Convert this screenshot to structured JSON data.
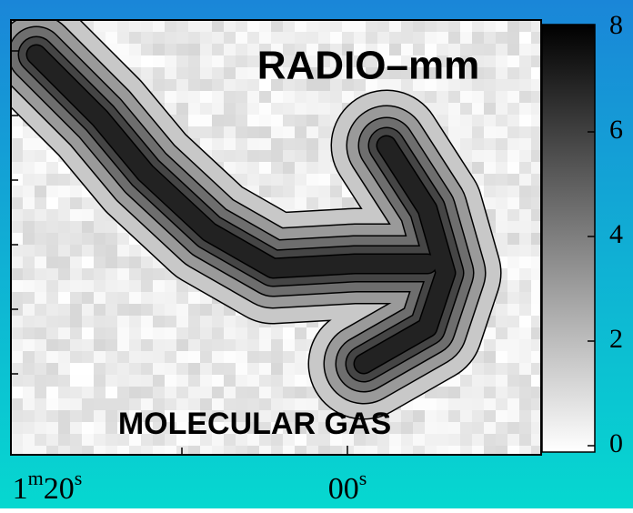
{
  "image": {
    "title": "RADIO–mm",
    "caption": "MOLECULAR GAS"
  },
  "colorbar": {
    "lim": [
      0,
      8
    ],
    "ticks": [
      0,
      2,
      4,
      6,
      8
    ]
  },
  "x_axis": {
    "labels": [
      {
        "hours": "1",
        "hours_unit": "m",
        "value": "20",
        "unit": "s"
      },
      {
        "value": "00",
        "unit": "s"
      }
    ]
  }
}
